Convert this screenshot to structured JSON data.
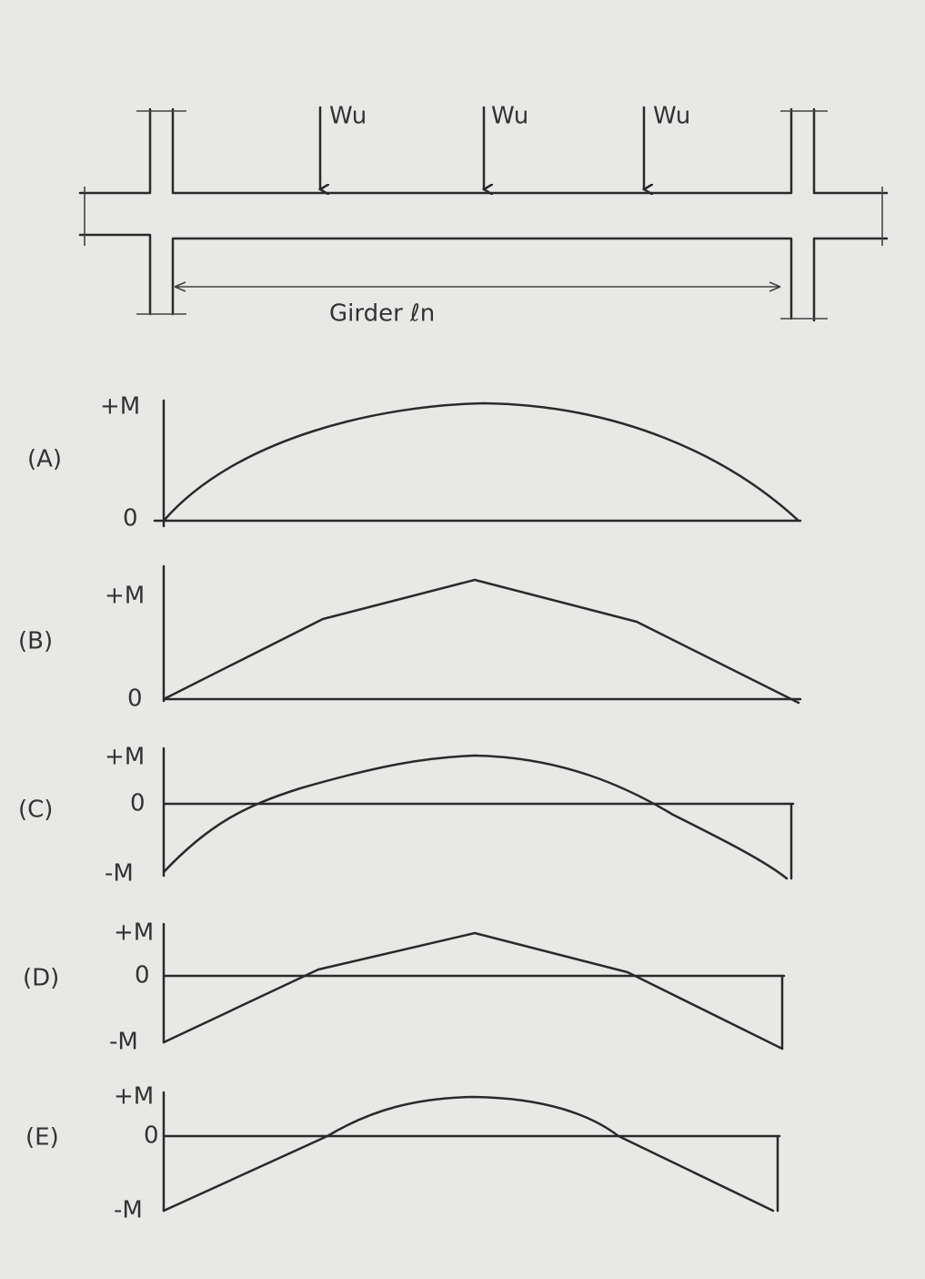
{
  "loads": [
    {
      "label": "Wu"
    },
    {
      "label": "Wu"
    },
    {
      "label": "Wu"
    }
  ],
  "girder_label": "Girder ℓn",
  "diagrams": [
    {
      "label": "(A)",
      "axis_labels": [
        "+M",
        "0"
      ]
    },
    {
      "label": "(B)",
      "axis_labels": [
        "+M",
        "0"
      ]
    },
    {
      "label": "(C)",
      "axis_labels": [
        "+M",
        "0",
        "-M"
      ]
    },
    {
      "label": "(D)",
      "axis_labels": [
        "+M",
        "0",
        "-M"
      ]
    },
    {
      "label": "(E)",
      "axis_labels": [
        "+M",
        "0",
        "-M"
      ]
    }
  ]
}
